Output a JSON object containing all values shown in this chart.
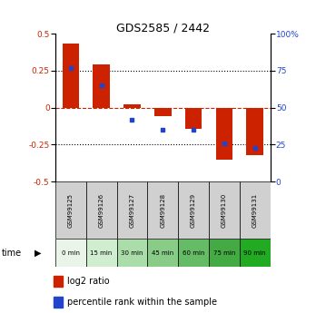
{
  "title": "GDS2585 / 2442",
  "samples": [
    "GSM99125",
    "GSM99126",
    "GSM99127",
    "GSM99128",
    "GSM99129",
    "GSM99130",
    "GSM99131"
  ],
  "time_labels": [
    "0 min",
    "15 min",
    "30 min",
    "45 min",
    "60 min",
    "75 min",
    "90 min"
  ],
  "log2_ratio": [
    0.43,
    0.29,
    0.025,
    -0.055,
    -0.14,
    -0.35,
    -0.32
  ],
  "percentile_rank": [
    77,
    65,
    42,
    35,
    35,
    26,
    23
  ],
  "ylim_left": [
    -0.5,
    0.5
  ],
  "ylim_right": [
    0,
    100
  ],
  "yticks_left": [
    -0.5,
    -0.25,
    0,
    0.25,
    0.5
  ],
  "yticks_right": [
    0,
    25,
    50,
    75,
    100
  ],
  "bar_color": "#cc2200",
  "dot_color": "#2244cc",
  "time_colors": [
    "#e8f4e8",
    "#c8eac8",
    "#a8dca8",
    "#88cc88",
    "#66bb66",
    "#44aa44",
    "#22aa22"
  ],
  "sample_bg_color": "#d0d0d0",
  "left_color": "#cc2200",
  "right_color": "#2244cc",
  "hline_color": "#cc2200",
  "bar_width": 0.55,
  "title_fontsize": 9,
  "tick_fontsize": 6.5,
  "label_fontsize": 6,
  "legend_fontsize": 7
}
